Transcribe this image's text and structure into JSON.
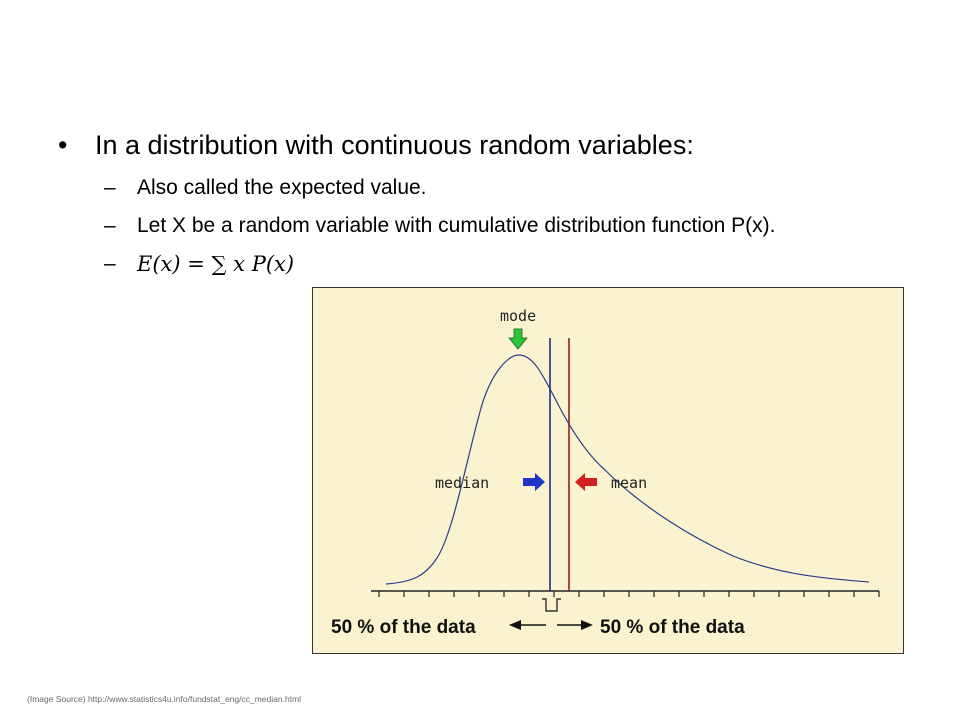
{
  "slide": {
    "bullet": "•",
    "dash": "–",
    "main_point": "In a distribution with continuous random variables:",
    "sub_points": [
      "Also called the expected value.",
      "Let X be a random variable with cumulative distribution function P(x).",
      "E(x) = ∑ x P(x)"
    ],
    "source_note": "(Image Source) http://www.statistics4u.info/fundstat_eng/cc_median.html"
  },
  "figure": {
    "labels": {
      "mode": "mode",
      "median": "median",
      "mean": "mean",
      "left_half": "50 % of the data",
      "right_half": "50 % of the data"
    },
    "colors": {
      "background": "#fbf3d0",
      "curve": "#2b3a8c",
      "median_line": "#1f2e8a",
      "mean_line": "#8a1f2e",
      "mode_arrow": "#2ec43a",
      "median_arrow": "#1f35c8",
      "mean_arrow": "#d42020"
    }
  }
}
